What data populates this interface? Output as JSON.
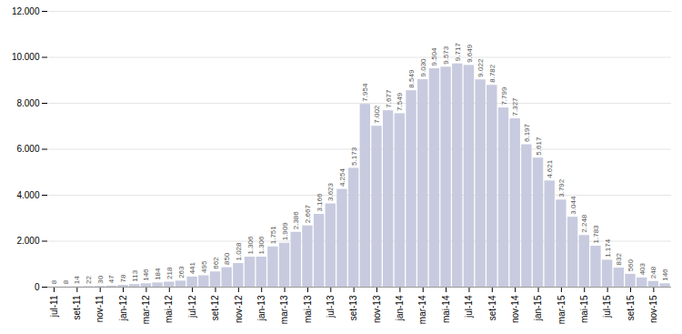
{
  "chart_data": {
    "type": "bar",
    "categories": [
      "jul-11",
      null,
      "set-11",
      null,
      "nov-11",
      null,
      "jan-12",
      null,
      "mar-12",
      null,
      "mai-12",
      null,
      "jul-12",
      null,
      "set-12",
      null,
      "nov-12",
      null,
      "jan-13",
      null,
      "mar-13",
      null,
      "mai-13",
      null,
      "jul-13",
      null,
      "set-13",
      null,
      "nov-13",
      null,
      "jan-14",
      null,
      "mar-14",
      null,
      "mai-14",
      null,
      "jul-14",
      null,
      "set-14",
      null,
      "nov-14",
      null,
      "jan-15",
      null,
      "mar-15",
      null,
      "mai-15",
      null,
      "jul-15",
      null,
      "set-15",
      null,
      "nov-15",
      null
    ],
    "values": [
      8,
      8,
      14,
      22,
      30,
      47,
      78,
      113,
      146,
      184,
      218,
      263,
      441,
      495,
      662,
      850,
      1028,
      1306,
      1306,
      1751,
      1909,
      2386,
      2667,
      3166,
      3623,
      4254,
      5173,
      7954,
      7002,
      7677,
      7549,
      8549,
      9030,
      9504,
      9573,
      9717,
      9649,
      9022,
      8782,
      7799,
      7327,
      6197,
      5617,
      4621,
      3792,
      3044,
      2248,
      1783,
      1174,
      832,
      560,
      403,
      248,
      146
    ],
    "value_labels": [
      "8",
      "8",
      "14",
      "22",
      "30",
      "47",
      "78",
      "113",
      "146",
      "184",
      "218",
      "263",
      "441",
      "495",
      "662",
      "850",
      "1.028",
      "1.306",
      "1.306",
      "1.751",
      "1.909",
      "2.386",
      "2.667",
      "3.166",
      "3.623",
      "4.254",
      "5.173",
      "7.954",
      "7.002",
      "7.677",
      "7.549",
      "8.549",
      "9.030",
      "9.504",
      "9.573",
      "9.717",
      "9.649",
      "9.022",
      "8.782",
      "7.799",
      "7.327",
      "6.197",
      "5.617",
      "4.621",
      "3.792",
      "3.044",
      "2.248",
      "1.783",
      "1.174",
      "832",
      "560",
      "403",
      "248",
      "146"
    ],
    "color": "#c8cbdf",
    "ylim": [
      0,
      12000
    ],
    "yticks": [
      0,
      {
        "value": 2000,
        "label": "2.000"
      },
      {
        "value": 4000,
        "label": "4.000"
      },
      {
        "value": 6000,
        "label": "6.000"
      },
      {
        "value": 8000,
        "label": "8.000"
      },
      {
        "value": 10000,
        "label": "10.000"
      },
      {
        "value": 12000,
        "label": "12.000"
      }
    ],
    "grid": true,
    "data_labels": true
  }
}
